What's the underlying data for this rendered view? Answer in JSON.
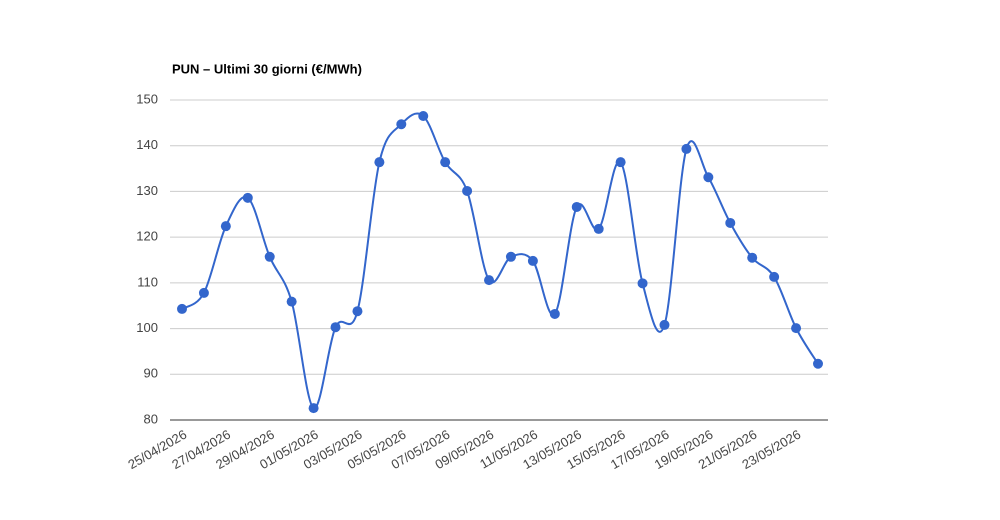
{
  "chart_data": {
    "type": "line",
    "title": "PUN – Ultimi 30 giorni (€/MWh)",
    "categories": [
      "25/04/2026",
      null,
      "27/04/2026",
      null,
      "29/04/2026",
      null,
      "01/05/2026",
      null,
      "03/05/2026",
      null,
      "05/05/2026",
      null,
      "07/05/2026",
      null,
      "09/05/2026",
      null,
      "11/05/2026",
      null,
      "13/05/2026",
      null,
      "15/05/2026",
      null,
      "17/05/2026",
      null,
      "19/05/2026",
      null,
      "21/05/2026",
      null,
      "23/05/2026",
      null
    ],
    "series": [
      {
        "name": "PUN",
        "color": "#3366cc",
        "values": [
          104.3,
          107.8,
          122.4,
          128.6,
          115.7,
          105.9,
          82.6,
          100.3,
          103.8,
          136.4,
          144.7,
          146.5,
          136.4,
          130.1,
          110.6,
          115.7,
          114.8,
          103.2,
          126.6,
          121.8,
          136.4,
          109.9,
          100.8,
          139.3,
          133.1,
          123.1,
          115.5,
          111.3,
          100.1,
          92.3
        ]
      }
    ],
    "ylim": [
      80,
      150
    ],
    "yticks": [
      80,
      90,
      100,
      110,
      120,
      130,
      140,
      150
    ],
    "grid": true
  }
}
